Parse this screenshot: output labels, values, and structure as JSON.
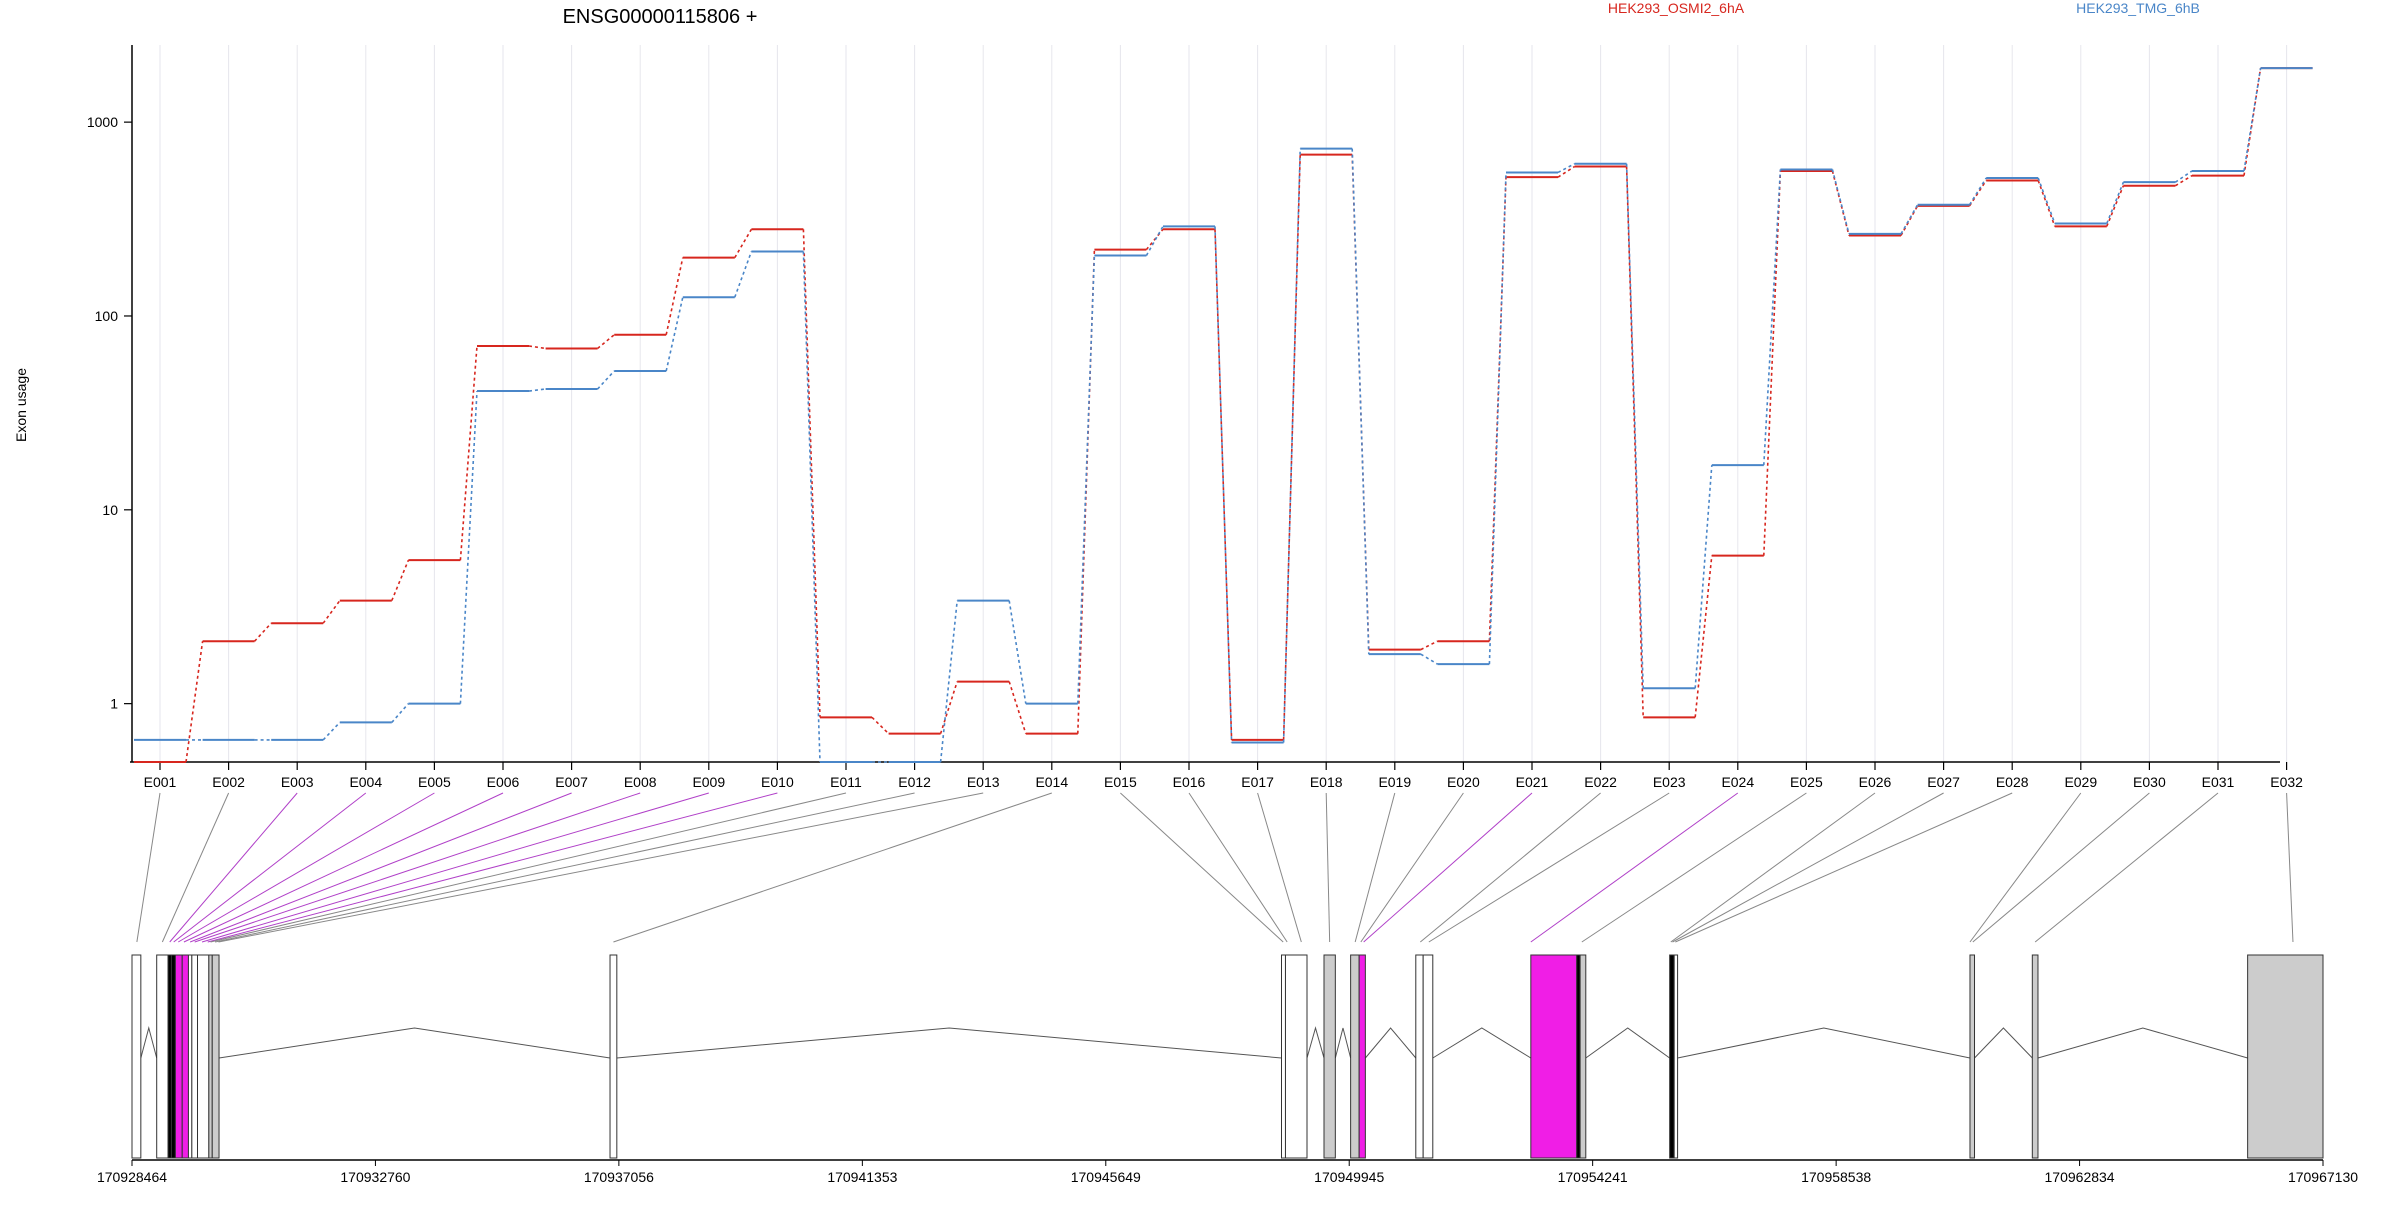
{
  "chart_data": {
    "type": "line",
    "title": "ENSG00000115806 +",
    "ylabel": "Exon usage",
    "xlabel": "",
    "y_scale": "log",
    "ylim": [
      0.5,
      2500
    ],
    "y_ticks": [
      "1000",
      "100",
      "10",
      "1"
    ],
    "y_tick_values": [
      1000,
      100,
      10,
      1
    ],
    "grid": "vertical-light",
    "legend_placement": "top-right",
    "categories": [
      "E001",
      "E002",
      "E003",
      "E004",
      "E005",
      "E006",
      "E007",
      "E008",
      "E009",
      "E010",
      "E011",
      "E012",
      "E013",
      "E014",
      "E015",
      "E016",
      "E017",
      "E018",
      "E019",
      "E020",
      "E021",
      "E022",
      "E023",
      "E024",
      "E025",
      "E026",
      "E027",
      "E028",
      "E029",
      "E030",
      "E031",
      "E032"
    ],
    "series": [
      {
        "name": "HEK293_OSMI2_6hA",
        "color": "#d7261e",
        "values": [
          0.5,
          2.1,
          2.6,
          3.4,
          5.5,
          70,
          68,
          80,
          200,
          280,
          0.85,
          0.7,
          1.3,
          0.7,
          220,
          280,
          0.65,
          680,
          1.9,
          2.1,
          520,
          590,
          0.85,
          5.8,
          560,
          260,
          370,
          500,
          290,
          470,
          530,
          1900
        ]
      },
      {
        "name": "HEK293_TMG_6hB",
        "color": "#4a86c8",
        "values": [
          0.65,
          0.65,
          0.65,
          0.8,
          1.0,
          41,
          42,
          52,
          125,
          215,
          0.5,
          0.5,
          3.4,
          1.0,
          205,
          290,
          0.63,
          730,
          1.8,
          1.6,
          550,
          610,
          1.2,
          17,
          570,
          265,
          375,
          515,
          300,
          490,
          560,
          1900
        ]
      }
    ],
    "genomic_ticks": [
      "170928464",
      "170932760",
      "170937056",
      "170941353",
      "170945649",
      "170949945",
      "170954241",
      "170958538",
      "170962834",
      "170967130"
    ],
    "genomic_range": [
      170928464,
      170967130
    ],
    "highlight_color": "#f01ee6",
    "exon_fill": "#cccccc",
    "exon_highlight_fill": "#f01ee6",
    "gene_model": {
      "exons": [
        {
          "start": 170928464,
          "end": 170928620,
          "fill": "white"
        },
        {
          "start": 170928900,
          "end": 170929100,
          "fill": "white"
        },
        {
          "start": 170929100,
          "end": 170929160,
          "fill": "black"
        },
        {
          "start": 170929160,
          "end": 170929230,
          "fill": "black"
        },
        {
          "start": 170929230,
          "end": 170929350,
          "fill": "highlight"
        },
        {
          "start": 170929350,
          "end": 170929460,
          "fill": "highlight"
        },
        {
          "start": 170929460,
          "end": 170929520,
          "fill": "white"
        },
        {
          "start": 170929520,
          "end": 170929620,
          "fill": "white"
        },
        {
          "start": 170929620,
          "end": 170929820,
          "fill": "white"
        },
        {
          "start": 170929820,
          "end": 170929880,
          "fill": "grey"
        },
        {
          "start": 170929880,
          "end": 170930000,
          "fill": "grey"
        },
        {
          "start": 170936900,
          "end": 170937020,
          "fill": "white"
        },
        {
          "start": 170948750,
          "end": 170948820,
          "fill": "white"
        },
        {
          "start": 170948820,
          "end": 170949200,
          "fill": "white"
        },
        {
          "start": 170949500,
          "end": 170949700,
          "fill": "grey"
        },
        {
          "start": 170949970,
          "end": 170950120,
          "fill": "grey"
        },
        {
          "start": 170950120,
          "end": 170950230,
          "fill": "highlight"
        },
        {
          "start": 170951120,
          "end": 170951250,
          "fill": "white"
        },
        {
          "start": 170951250,
          "end": 170951420,
          "fill": "white"
        },
        {
          "start": 170953150,
          "end": 170953960,
          "fill": "highlight"
        },
        {
          "start": 170953960,
          "end": 170954020,
          "fill": "black"
        },
        {
          "start": 170954020,
          "end": 170954120,
          "fill": "grey"
        },
        {
          "start": 170955600,
          "end": 170955680,
          "fill": "black"
        },
        {
          "start": 170955680,
          "end": 170955740,
          "fill": "white"
        },
        {
          "start": 170960900,
          "end": 170960980,
          "fill": "grey"
        },
        {
          "start": 170962000,
          "end": 170962100,
          "fill": "grey"
        },
        {
          "start": 170965800,
          "end": 170967130,
          "fill": "grey"
        }
      ],
      "links": [
        {
          "exon": "E001",
          "pos": 170928550,
          "color": "grey"
        },
        {
          "exon": "E002",
          "pos": 170929000,
          "color": "grey"
        },
        {
          "exon": "E003",
          "pos": 170929130,
          "color": "highlight"
        },
        {
          "exon": "E004",
          "pos": 170929200,
          "color": "highlight"
        },
        {
          "exon": "E005",
          "pos": 170929280,
          "color": "highlight"
        },
        {
          "exon": "E006",
          "pos": 170929380,
          "color": "highlight"
        },
        {
          "exon": "E007",
          "pos": 170929490,
          "color": "highlight"
        },
        {
          "exon": "E008",
          "pos": 170929570,
          "color": "highlight"
        },
        {
          "exon": "E009",
          "pos": 170929700,
          "color": "highlight"
        },
        {
          "exon": "E010",
          "pos": 170929800,
          "color": "highlight"
        },
        {
          "exon": "E011",
          "pos": 170929850,
          "color": "grey"
        },
        {
          "exon": "E012",
          "pos": 170929930,
          "color": "grey"
        },
        {
          "exon": "E013",
          "pos": 170929990,
          "color": "grey"
        },
        {
          "exon": "E014",
          "pos": 170936960,
          "color": "grey"
        },
        {
          "exon": "E015",
          "pos": 170948780,
          "color": "grey"
        },
        {
          "exon": "E016",
          "pos": 170948850,
          "color": "grey"
        },
        {
          "exon": "E017",
          "pos": 170949100,
          "color": "grey"
        },
        {
          "exon": "E018",
          "pos": 170949600,
          "color": "grey"
        },
        {
          "exon": "E019",
          "pos": 170950050,
          "color": "grey"
        },
        {
          "exon": "E020",
          "pos": 170950150,
          "color": "grey"
        },
        {
          "exon": "E021",
          "pos": 170950200,
          "color": "highlight"
        },
        {
          "exon": "E022",
          "pos": 170951200,
          "color": "grey"
        },
        {
          "exon": "E023",
          "pos": 170951350,
          "color": "grey"
        },
        {
          "exon": "E024",
          "pos": 170953150,
          "color": "highlight"
        },
        {
          "exon": "E025",
          "pos": 170954050,
          "color": "grey"
        },
        {
          "exon": "E026",
          "pos": 170955620,
          "color": "grey"
        },
        {
          "exon": "E027",
          "pos": 170955650,
          "color": "grey"
        },
        {
          "exon": "E028",
          "pos": 170955700,
          "color": "grey"
        },
        {
          "exon": "E029",
          "pos": 170960900,
          "color": "grey"
        },
        {
          "exon": "E030",
          "pos": 170960950,
          "color": "grey"
        },
        {
          "exon": "E031",
          "pos": 170962050,
          "color": "grey"
        },
        {
          "exon": "E032",
          "pos": 170966600,
          "color": "grey"
        }
      ]
    }
  }
}
